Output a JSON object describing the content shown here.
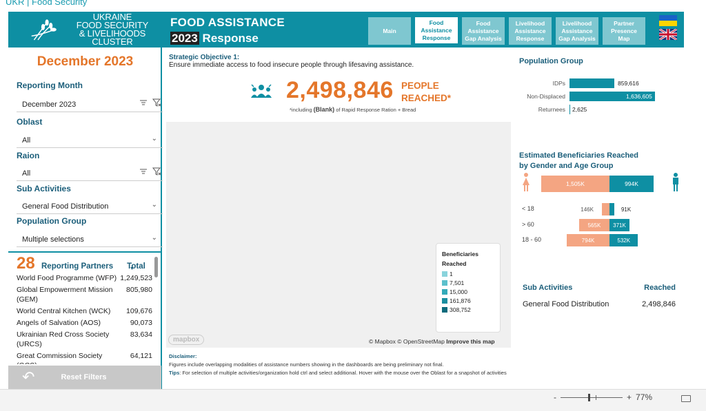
{
  "top_strip": {
    "text": "UKR | Food Security"
  },
  "header": {
    "logo_lines": [
      "UKRAINE",
      "FOOD SECURITY",
      "& LIVELIHOODS CLUSTER"
    ],
    "title_line1": "FOOD ASSISTANCE",
    "title_year": "2023",
    "title_line2": " Response",
    "tabs": [
      {
        "lines": [
          "Main"
        ],
        "active": false
      },
      {
        "lines": [
          "Food",
          "Assistance",
          "Response"
        ],
        "active": true
      },
      {
        "lines": [
          "Food",
          "Assistance",
          "Gap Analysis"
        ],
        "active": false
      },
      {
        "lines": [
          "Livelihood",
          "Assistance",
          "Response"
        ],
        "active": false
      },
      {
        "lines": [
          "Livelihood",
          "Assistance",
          "Gap Analysis"
        ],
        "active": false
      },
      {
        "lines": [
          "Partner",
          "Presence",
          "Map"
        ],
        "active": false
      }
    ]
  },
  "sidebar": {
    "month_title": "December 2023",
    "filters": [
      {
        "label": "Reporting Month",
        "value": "December 2023"
      },
      {
        "label": "Oblast",
        "value": "All"
      },
      {
        "label": "Raion",
        "value": "All"
      },
      {
        "label": "Sub Activities",
        "value": "General Food Distribution"
      },
      {
        "label": "Population Group",
        "value": "Multiple selections"
      }
    ],
    "partners": {
      "count": "28",
      "label": "Reporting Partners",
      "total_label": "Total",
      "rows": [
        {
          "name": "World Food Programme (WFP)",
          "value": "1,249,523"
        },
        {
          "name": "Global Empowerment Mission (GEM)",
          "value": "805,980"
        },
        {
          "name": "World Central Kitchen (WCK)",
          "value": "109,676"
        },
        {
          "name": "Angels of Salvation (AOS)",
          "value": "90,073"
        },
        {
          "name": "Ukrainian Red Cross Society (URCS)",
          "value": "83,634"
        },
        {
          "name": "Great Commission Society (GCS)",
          "value": "64,121"
        }
      ]
    },
    "reset_label": "Reset Filters"
  },
  "objective": {
    "title": "Strategic Objective 1:",
    "text": "Ensure immediate access to food insecure people through lifesaving assistance."
  },
  "kpi": {
    "value": "2,498,846",
    "label1": "PEOPLE",
    "label2": "REACHED*",
    "note_pre": "*including ",
    "note_bold": "(Blank)",
    "note_post": " of Rapid Response Ration + Bread"
  },
  "map": {
    "legend_title1": "Beneficiaries",
    "legend_title2": "Reached",
    "legend_items": [
      {
        "label": "1",
        "color": "#8ad3dc"
      },
      {
        "label": "7,501",
        "color": "#5cc0cc"
      },
      {
        "label": "15,000",
        "color": "#34aab9"
      },
      {
        "label": "161,876",
        "color": "#1a8ea0"
      },
      {
        "label": "308,752",
        "color": "#0c6b7c"
      }
    ],
    "logo": "mapbox",
    "attribution": "© Mapbox © OpenStreetMap",
    "improve": "Improve this map"
  },
  "disclaimer": {
    "title": "Disclaimer:",
    "text": "Figures include overlapping modalities of assistance numbers showing in the dashboards are being preliminary not final.",
    "tips_label": "Tips",
    "tips_text": ": For selection of multiple activities/organization hold ctrl and select additional.  Hover with the mouse over the Oblast for a snapshot of activities"
  },
  "population_group": {
    "title": "Population Group",
    "rows": [
      {
        "label": "IDPs",
        "value": "859,616",
        "num": 859616
      },
      {
        "label": "Non-Displaced",
        "value": "1,636,605",
        "num": 1636605
      },
      {
        "label": "Returnees",
        "value": "2,625",
        "num": 2625
      }
    ]
  },
  "gender": {
    "title1": "Estimated Beneficiaries Reached",
    "title2": "by Gender and Age Group",
    "female_total": "1,505K",
    "male_total": "994K",
    "ages": [
      {
        "label": "< 18",
        "female": "146K",
        "male": "91K",
        "f": 146,
        "m": 91
      },
      {
        "label": "> 60",
        "female": "565K",
        "male": "371K",
        "f": 565,
        "m": 371
      },
      {
        "label": "18 - 60",
        "female": "794K",
        "male": "532K",
        "f": 794,
        "m": 532
      }
    ],
    "female_color": "#f4a582",
    "male_color": "#0e8fa3"
  },
  "sub_activities": {
    "col1": "Sub Activities",
    "col2": "Reached",
    "rows": [
      {
        "name": "General Food Distribution",
        "value": "2,498,846"
      }
    ]
  },
  "statusbar": {
    "zoom_minus": "-",
    "zoom_plus": "+",
    "zoom_level": "77%"
  }
}
